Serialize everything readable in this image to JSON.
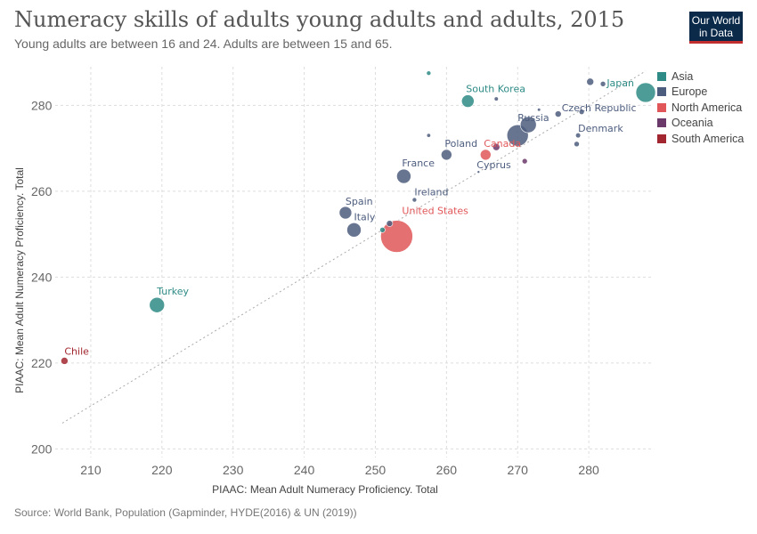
{
  "header": {
    "title": "Numeracy skills of adults young adults and adults, 2015",
    "subtitle": "Young adults are between 16 and 24. Adults are between 15 and 65.",
    "logo_line1": "Our World",
    "logo_line2": "in Data"
  },
  "footer": {
    "source": "Source: World Bank, Population (Gapminder, HYDE(2016) & UN (2019))"
  },
  "colors": {
    "Asia": "#2e8b86",
    "Europe": "#4d5d7e",
    "North America": "#e15759",
    "Oceania": "#6b3a6b",
    "South America": "#a2262f"
  },
  "chart_data": {
    "type": "scatter",
    "title": "Numeracy skills of adults young adults and adults, 2015",
    "subtitle": "Young adults are between 16 and 24. Adults are between 15 and 65.",
    "xlabel": "PIAAC: Mean Adult Numeracy Proficiency. Total",
    "ylabel": "PIAAC: Mean Adult Numeracy Proficiency. Total",
    "xlim": [
      205,
      289
    ],
    "ylim": [
      198,
      289
    ],
    "xticks": [
      210,
      220,
      230,
      240,
      250,
      260,
      270,
      280
    ],
    "yticks": [
      200,
      220,
      240,
      260,
      280
    ],
    "grid": true,
    "legend_position": "right",
    "legend": [
      "Asia",
      "Europe",
      "North America",
      "Oceania",
      "South America"
    ],
    "diagonal_reference_line": true,
    "points": [
      {
        "label": "Japan",
        "x": 288,
        "y": 283,
        "region": "Asia",
        "size": 11
      },
      {
        "label": "South Korea",
        "x": 263,
        "y": 281,
        "region": "Asia",
        "size": 7
      },
      {
        "label": "Czech Republic",
        "x": 275.7,
        "y": 278,
        "region": "Europe",
        "size": 3.5
      },
      {
        "label": "Russia",
        "x": 270,
        "y": 273,
        "region": "Europe",
        "size": 12
      },
      {
        "label": "Denmark",
        "x": 278.5,
        "y": 273,
        "region": "Europe",
        "size": 2.8
      },
      {
        "label": "Poland",
        "x": 260,
        "y": 268.5,
        "region": "Europe",
        "size": 6
      },
      {
        "label": "Canada",
        "x": 265.5,
        "y": 268.5,
        "region": "North America",
        "size": 6
      },
      {
        "label": "Cyprus",
        "x": 264.5,
        "y": 264.5,
        "region": "Europe",
        "size": 1.5
      },
      {
        "label": "France",
        "x": 254,
        "y": 263.5,
        "region": "Europe",
        "size": 8
      },
      {
        "label": "Ireland",
        "x": 255.5,
        "y": 258,
        "region": "Europe",
        "size": 2.5
      },
      {
        "label": "Spain",
        "x": 245.8,
        "y": 255,
        "region": "Europe",
        "size": 7
      },
      {
        "label": "Italy",
        "x": 247,
        "y": 251,
        "region": "Europe",
        "size": 8
      },
      {
        "label": "United States",
        "x": 253,
        "y": 249.5,
        "region": "North America",
        "size": 18
      },
      {
        "label": "Turkey",
        "x": 219.3,
        "y": 233.5,
        "region": "Asia",
        "size": 8.5
      },
      {
        "label": "Chile",
        "x": 206.3,
        "y": 220.5,
        "region": "South America",
        "size": 4
      },
      {
        "label": "",
        "x": 257.5,
        "y": 287.5,
        "region": "Asia",
        "size": 2.5
      },
      {
        "label": "",
        "x": 280.2,
        "y": 285.5,
        "region": "Europe",
        "size": 4
      },
      {
        "label": "",
        "x": 282,
        "y": 285,
        "region": "Europe",
        "size": 3
      },
      {
        "label": "",
        "x": 267,
        "y": 281.5,
        "region": "Europe",
        "size": 2.3
      },
      {
        "label": "",
        "x": 273,
        "y": 279,
        "region": "Europe",
        "size": 1.8
      },
      {
        "label": "",
        "x": 279,
        "y": 278.5,
        "region": "Europe",
        "size": 3
      },
      {
        "label": "",
        "x": 271.5,
        "y": 275.5,
        "region": "Europe",
        "size": 9
      },
      {
        "label": "",
        "x": 257.5,
        "y": 273,
        "region": "Europe",
        "size": 2.2
      },
      {
        "label": "",
        "x": 278.3,
        "y": 271,
        "region": "Europe",
        "size": 3
      },
      {
        "label": "",
        "x": 267,
        "y": 270.3,
        "region": "Oceania",
        "size": 4
      },
      {
        "label": "",
        "x": 271,
        "y": 267,
        "region": "Oceania",
        "size": 3
      },
      {
        "label": "",
        "x": 252,
        "y": 252.5,
        "region": "Europe",
        "size": 3.5
      },
      {
        "label": "",
        "x": 251,
        "y": 251,
        "region": "Asia",
        "size": 3
      }
    ]
  }
}
